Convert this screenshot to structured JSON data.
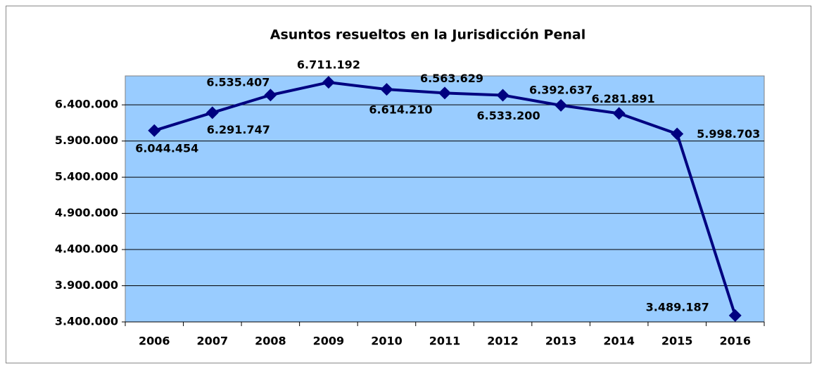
{
  "chart_data": {
    "type": "line",
    "title": "Asuntos resueltos en la Jurisdicción Penal",
    "categories": [
      "2006",
      "2007",
      "2008",
      "2009",
      "2010",
      "2011",
      "2012",
      "2013",
      "2014",
      "2015",
      "2016"
    ],
    "series": [
      {
        "name": "Asuntos resueltos",
        "color": "#000080",
        "values": [
          6044454,
          6291747,
          6535407,
          6711192,
          6614210,
          6563629,
          6533200,
          6392637,
          6281891,
          5998703,
          3489187
        ],
        "value_labels": [
          "6.044.454",
          "6.291.747",
          "6.535.407",
          "6.711.192",
          "6.614.210",
          "6.563.629",
          "6.533.200",
          "6.392.637",
          "6.281.891",
          "5.998.703",
          "3.489.187"
        ]
      }
    ],
    "ylim": [
      3400000,
      6800000
    ],
    "yticks": [
      {
        "value": 3400000,
        "label": "3.400.000"
      },
      {
        "value": 3900000,
        "label": "3.900.000"
      },
      {
        "value": 4400000,
        "label": "4.400.000"
      },
      {
        "value": 4900000,
        "label": "4.900.000"
      },
      {
        "value": 5400000,
        "label": "5.400.000"
      },
      {
        "value": 5900000,
        "label": "5.900.000"
      },
      {
        "value": 6400000,
        "label": "6.400.000"
      }
    ],
    "grid": true,
    "plot_background": "#99ccff"
  }
}
